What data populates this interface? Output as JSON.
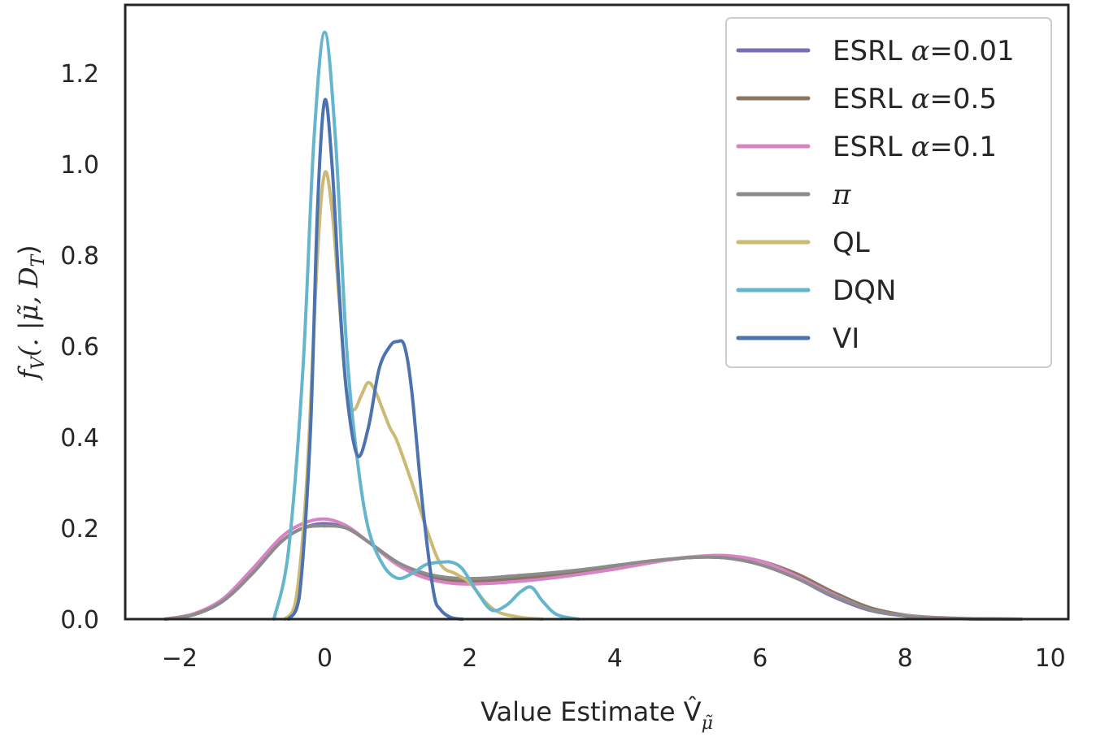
{
  "chart_data": {
    "type": "line",
    "xlabel": "Value Estimate V̂",
    "xlabel_sub": "μ̃",
    "ylabel": "f",
    "ylabel_sub": "V",
    "ylabel_rest": "(. |μ̃, D",
    "ylabel_sub2": "T",
    "ylabel_end": ")",
    "xlim": [
      -2.75,
      10.25
    ],
    "ylim": [
      0.0,
      1.35
    ],
    "xticks": [
      -2,
      0,
      2,
      4,
      6,
      8,
      10
    ],
    "xtick_labels": [
      "−2",
      "0",
      "2",
      "4",
      "6",
      "8",
      "10"
    ],
    "yticks": [
      0.0,
      0.2,
      0.4,
      0.6,
      0.8,
      1.0,
      1.2
    ],
    "ytick_labels": [
      "0.0",
      "0.2",
      "0.4",
      "0.6",
      "0.8",
      "1.0",
      "1.2"
    ],
    "grid": false,
    "legend_position": "top-right",
    "series": [
      {
        "name": "ESRL α=0.01",
        "label_prefix": "ESRL ",
        "label_math": "α",
        "label_suffix": "=0.01",
        "color": "#7a6fb5",
        "x": [
          -2.2,
          -1.8,
          -1.4,
          -1.0,
          -0.6,
          -0.3,
          0.0,
          0.3,
          0.6,
          1.0,
          1.4,
          1.8,
          2.2,
          2.6,
          3.0,
          3.5,
          4.0,
          4.5,
          5.0,
          5.5,
          6.0,
          6.5,
          7.0,
          7.5,
          8.0,
          8.5,
          9.0,
          9.6
        ],
        "y": [
          0.0,
          0.01,
          0.04,
          0.1,
          0.17,
          0.2,
          0.21,
          0.2,
          0.17,
          0.12,
          0.09,
          0.08,
          0.08,
          0.085,
          0.09,
          0.1,
          0.11,
          0.125,
          0.135,
          0.135,
          0.12,
          0.09,
          0.05,
          0.02,
          0.007,
          0.002,
          0.0005,
          0.0
        ]
      },
      {
        "name": "ESRL α=0.5",
        "label_prefix": "ESRL ",
        "label_math": "α",
        "label_suffix": "=0.5",
        "color": "#8c7560",
        "x": [
          -2.2,
          -1.8,
          -1.4,
          -1.0,
          -0.6,
          -0.3,
          0.0,
          0.3,
          0.6,
          1.0,
          1.4,
          1.8,
          2.2,
          2.6,
          3.0,
          3.5,
          4.0,
          4.5,
          5.0,
          5.5,
          6.0,
          6.5,
          7.0,
          7.5,
          8.0,
          8.5,
          9.0,
          9.6
        ],
        "y": [
          0.0,
          0.01,
          0.04,
          0.1,
          0.17,
          0.2,
          0.205,
          0.2,
          0.17,
          0.125,
          0.095,
          0.085,
          0.085,
          0.09,
          0.095,
          0.105,
          0.115,
          0.125,
          0.135,
          0.138,
          0.128,
          0.1,
          0.06,
          0.026,
          0.009,
          0.003,
          0.0008,
          0.0
        ]
      },
      {
        "name": "ESRL α=0.1",
        "label_prefix": "ESRL ",
        "label_math": "α",
        "label_suffix": "=0.1",
        "color": "#d884c4",
        "x": [
          -2.2,
          -1.8,
          -1.4,
          -1.0,
          -0.6,
          -0.3,
          0.0,
          0.3,
          0.6,
          1.0,
          1.4,
          1.8,
          2.2,
          2.6,
          3.0,
          3.5,
          4.0,
          4.5,
          5.0,
          5.5,
          6.0,
          6.5,
          7.0,
          7.5,
          8.0,
          8.5,
          9.0,
          9.6
        ],
        "y": [
          0.0,
          0.012,
          0.045,
          0.11,
          0.18,
          0.21,
          0.22,
          0.205,
          0.17,
          0.12,
          0.09,
          0.078,
          0.078,
          0.082,
          0.088,
          0.098,
          0.11,
          0.124,
          0.136,
          0.14,
          0.128,
          0.095,
          0.055,
          0.022,
          0.008,
          0.002,
          0.0005,
          0.0
        ]
      },
      {
        "name": "π",
        "label_prefix": "",
        "label_math": "π",
        "label_suffix": "",
        "color": "#8c8c8c",
        "x": [
          -2.2,
          -1.8,
          -1.4,
          -1.0,
          -0.6,
          -0.3,
          0.0,
          0.3,
          0.6,
          1.0,
          1.4,
          1.8,
          2.2,
          2.6,
          3.0,
          3.5,
          4.0,
          4.5,
          5.0,
          5.5,
          6.0,
          6.5,
          7.0,
          7.5,
          8.0,
          8.5,
          9.0,
          9.6
        ],
        "y": [
          0.0,
          0.01,
          0.04,
          0.1,
          0.17,
          0.2,
          0.205,
          0.2,
          0.17,
          0.125,
          0.1,
          0.09,
          0.09,
          0.095,
          0.1,
          0.108,
          0.118,
          0.128,
          0.135,
          0.135,
          0.12,
          0.09,
          0.052,
          0.022,
          0.007,
          0.002,
          0.0005,
          0.0
        ]
      },
      {
        "name": "QL",
        "label_prefix": "QL",
        "label_math": "",
        "label_suffix": "",
        "color": "#ccb974",
        "x": [
          -0.55,
          -0.4,
          -0.25,
          -0.1,
          0.0,
          0.1,
          0.2,
          0.3,
          0.4,
          0.5,
          0.6,
          0.7,
          0.8,
          0.9,
          1.0,
          1.2,
          1.4,
          1.6,
          1.8,
          2.0,
          2.2,
          2.4,
          2.7,
          3.0
        ],
        "y": [
          0.0,
          0.04,
          0.3,
          0.8,
          0.98,
          0.9,
          0.7,
          0.5,
          0.46,
          0.49,
          0.52,
          0.5,
          0.46,
          0.42,
          0.39,
          0.3,
          0.2,
          0.12,
          0.1,
          0.08,
          0.04,
          0.015,
          0.004,
          0.0
        ]
      },
      {
        "name": "DQN",
        "label_prefix": "DQN",
        "label_math": "",
        "label_suffix": "",
        "color": "#64b5cd",
        "x": [
          -0.7,
          -0.5,
          -0.3,
          -0.15,
          0.0,
          0.15,
          0.3,
          0.45,
          0.6,
          0.8,
          1.0,
          1.2,
          1.4,
          1.6,
          1.75,
          1.9,
          2.1,
          2.3,
          2.5,
          2.7,
          2.85,
          3.0,
          3.2,
          3.5
        ],
        "y": [
          0.0,
          0.15,
          0.55,
          1.05,
          1.29,
          1.05,
          0.6,
          0.35,
          0.2,
          0.12,
          0.09,
          0.1,
          0.12,
          0.125,
          0.125,
          0.11,
          0.06,
          0.02,
          0.03,
          0.06,
          0.07,
          0.04,
          0.01,
          0.0
        ]
      },
      {
        "name": "VI",
        "label_prefix": "VI",
        "label_math": "",
        "label_suffix": "",
        "color": "#4c72b0",
        "x": [
          -0.5,
          -0.35,
          -0.2,
          -0.1,
          0.0,
          0.1,
          0.2,
          0.3,
          0.45,
          0.6,
          0.75,
          0.9,
          1.0,
          1.1,
          1.2,
          1.35,
          1.5,
          1.6,
          1.75,
          1.9
        ],
        "y": [
          0.0,
          0.05,
          0.4,
          0.9,
          1.14,
          1.0,
          0.72,
          0.5,
          0.36,
          0.42,
          0.55,
          0.6,
          0.61,
          0.6,
          0.5,
          0.25,
          0.06,
          0.02,
          0.003,
          0.0
        ]
      }
    ]
  }
}
